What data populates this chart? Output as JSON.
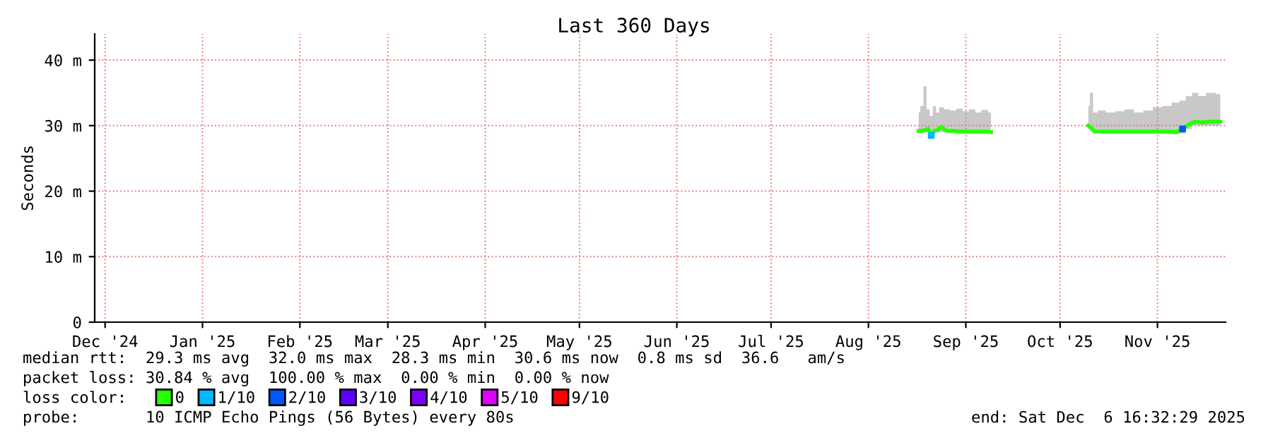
{
  "chart_data": {
    "type": "line",
    "title": "Last 360 Days",
    "ylabel": "Seconds",
    "x": [
      "2025-08-31",
      "2025-09-01",
      "2025-09-02",
      "2025-09-03",
      "2025-09-04",
      "2025-09-05",
      "2025-09-06",
      "2025-09-07",
      "2025-09-09",
      "2025-09-11",
      "2025-09-13",
      "2025-09-15",
      "2025-09-17",
      "2025-09-19",
      "2025-09-21",
      "2025-09-23",
      "2025-10-09",
      "2025-10-24",
      "2025-10-25",
      "2025-10-26",
      "2025-10-28",
      "2025-10-31",
      "2025-11-03",
      "2025-11-06",
      "2025-11-09",
      "2025-11-12",
      "2025-11-15",
      "2025-11-18",
      "2025-11-21",
      "2025-11-23",
      "2025-11-25",
      "2025-11-27",
      "2025-11-29",
      "2025-12-02",
      "2025-12-05"
    ],
    "series": [
      {
        "color": "#c8c8c8",
        "values": [
          null,
          null,
          null,
          null,
          null,
          null,
          null,
          null,
          null,
          null,
          null,
          null,
          null,
          null,
          null,
          null,
          null,
          null,
          null,
          null,
          null,
          null,
          null,
          null,
          null,
          null,
          null,
          null,
          null,
          null,
          null,
          null,
          null,
          null,
          null
        ],
        "lower": [
          29.0,
          29.0,
          29.0,
          29.0,
          28.3,
          29.0,
          29.0,
          29.0,
          29.0,
          29.0,
          29.0,
          29.0,
          29.0,
          29.0,
          29.0,
          28.9,
          null,
          29.5,
          29.2,
          29.0,
          29.0,
          29.0,
          29.0,
          29.0,
          29.0,
          29.0,
          29.0,
          29.0,
          28.7,
          28.8,
          29.5,
          30.0,
          30.0,
          30.0,
          30.0
        ],
        "upper": [
          32.0,
          33.0,
          36.0,
          32.5,
          31.5,
          33.0,
          32.0,
          32.8,
          32.5,
          32.3,
          32.6,
          32.2,
          32.5,
          32.0,
          32.4,
          32.0,
          null,
          33.0,
          35.0,
          32.0,
          32.3,
          32.0,
          32.2,
          32.5,
          32.0,
          32.3,
          32.8,
          33.0,
          33.5,
          33.8,
          34.5,
          35.0,
          34.5,
          35.0,
          34.8
        ]
      },
      {
        "name": "0",
        "color": "#26ff00",
        "values": [
          29.2,
          29.2,
          29.3,
          29.5,
          28.5,
          29.2,
          29.3,
          29.8,
          29.2,
          29.2,
          29.1,
          29.1,
          29.1,
          29.1,
          29.1,
          29.0,
          null,
          30.0,
          29.6,
          29.1,
          29.1,
          29.1,
          29.1,
          29.1,
          29.1,
          29.1,
          29.1,
          29.1,
          29.0,
          29.5,
          30.2,
          30.6,
          30.5,
          30.6,
          30.6
        ]
      },
      {
        "name": "1/10",
        "color": "#00b8ff",
        "type": "scatter",
        "values": [
          null,
          null,
          null,
          null,
          28.5,
          null,
          null,
          null,
          null,
          null,
          null,
          null,
          null,
          null,
          null,
          null,
          null,
          null,
          null,
          null,
          null,
          null,
          null,
          null,
          null,
          null,
          null,
          null,
          null,
          null,
          null,
          null,
          null,
          null,
          null
        ]
      },
      {
        "name": "2/10",
        "color": "#0059ff",
        "type": "scatter",
        "values": [
          null,
          null,
          null,
          null,
          null,
          null,
          null,
          null,
          null,
          null,
          null,
          null,
          null,
          null,
          null,
          null,
          null,
          null,
          null,
          null,
          null,
          null,
          null,
          null,
          null,
          null,
          null,
          null,
          null,
          29.5,
          null,
          null,
          null,
          null,
          null
        ]
      },
      {
        "name": "3/10",
        "color": "#5e00ff",
        "type": "scatter",
        "values": [
          null,
          null,
          null,
          null,
          null,
          null,
          null,
          null,
          null,
          null,
          null,
          null,
          null,
          null,
          null,
          null,
          null,
          null,
          null,
          null,
          null,
          null,
          null,
          null,
          null,
          null,
          null,
          null,
          null,
          null,
          null,
          null,
          null,
          null,
          null
        ]
      },
      {
        "name": "4/10",
        "color": "#7e00ff",
        "type": "scatter",
        "values": [
          null,
          null,
          null,
          null,
          null,
          null,
          null,
          null,
          null,
          null,
          null,
          null,
          null,
          null,
          null,
          null,
          null,
          null,
          null,
          null,
          null,
          null,
          null,
          null,
          null,
          null,
          null,
          null,
          null,
          null,
          null,
          null,
          null,
          null,
          null
        ]
      },
      {
        "name": "5/10",
        "color": "#dd00ff",
        "type": "scatter",
        "values": [
          null,
          null,
          null,
          null,
          null,
          null,
          null,
          null,
          null,
          null,
          null,
          null,
          null,
          null,
          null,
          null,
          null,
          null,
          null,
          null,
          null,
          null,
          null,
          null,
          null,
          null,
          null,
          null,
          null,
          null,
          null,
          null,
          null,
          null,
          null
        ]
      },
      {
        "name": "9/10",
        "color": "#ff0000",
        "type": "scatter",
        "values": [
          null,
          null,
          null,
          null,
          null,
          null,
          null,
          null,
          null,
          null,
          null,
          null,
          null,
          null,
          null,
          null,
          null,
          null,
          null,
          null,
          null,
          null,
          null,
          null,
          null,
          null,
          null,
          null,
          null,
          null,
          null,
          null,
          null,
          null,
          null
        ]
      }
    ],
    "xlim": [
      "2024-12-11T16:32",
      "2025-12-06T16:32"
    ],
    "xticks": [
      {
        "value": "2024-12-15",
        "label": "Dec '24"
      },
      {
        "value": "2025-01-15",
        "label": "Jan '25"
      },
      {
        "value": "2025-02-15",
        "label": "Feb '25"
      },
      {
        "value": "2025-03-15",
        "label": "Mar '25"
      },
      {
        "value": "2025-04-15",
        "label": "Apr '25"
      },
      {
        "value": "2025-05-15",
        "label": "May '25"
      },
      {
        "value": "2025-06-15",
        "label": "Jun '25"
      },
      {
        "value": "2025-07-15",
        "label": "Jul '25"
      },
      {
        "value": "2025-08-15",
        "label": "Aug '25"
      },
      {
        "value": "2025-09-15",
        "label": "Sep '25"
      },
      {
        "value": "2025-10-15",
        "label": "Oct '25"
      },
      {
        "value": "2025-11-15",
        "label": "Nov '25"
      }
    ],
    "ylim": [
      0,
      44
    ],
    "yticks": [
      0,
      {
        "value": 10,
        "label": "10 m"
      },
      {
        "value": 20,
        "label": "20 m"
      },
      {
        "value": 30,
        "label": "30 m"
      },
      {
        "value": 40,
        "label": "40 m"
      }
    ],
    "grid": true,
    "legend": "bottom",
    "annotations": [
      "median rtt:  29.3 ms avg  32.0 ms max  28.3 ms min  30.6 ms now  0.8 ms sd  36.6   am/s",
      "packet loss: 30.84 % avg  100.00 % max  0.00 % min  0.00 % now",
      "loss color:",
      "probe:       10 ICMP Echo Pings (56 Bytes) every 80s",
      "end: Sat Dec  6 16:32:29 2025"
    ]
  }
}
